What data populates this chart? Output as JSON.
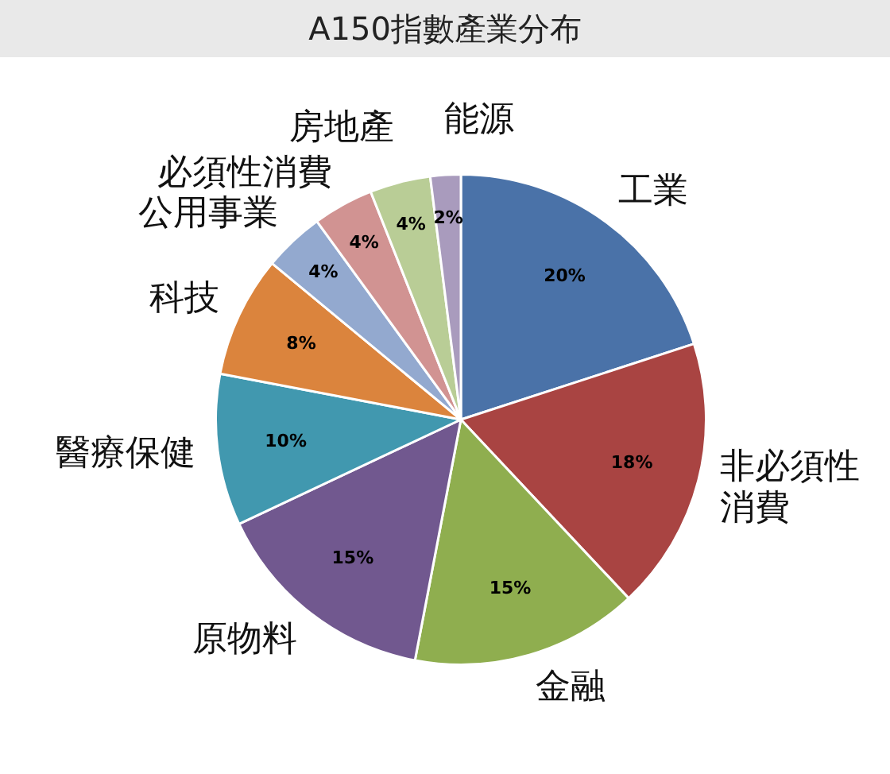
{
  "chart_data": {
    "type": "pie",
    "title": "A150指數產業分布",
    "categories": [
      "工業",
      "非必須性消費",
      "金融",
      "原物料",
      "醫療保健",
      "科技",
      "公用事業",
      "必須性消費",
      "房地產",
      "能源"
    ],
    "values": [
      20,
      18,
      15,
      15,
      10,
      8,
      4,
      4,
      4,
      2
    ],
    "value_labels": [
      "20%",
      "18%",
      "15%",
      "15%",
      "10%",
      "8%",
      "4%",
      "4%",
      "4%",
      "2%"
    ],
    "colors": [
      "#4a72a8",
      "#a94442",
      "#8fae4f",
      "#71588f",
      "#4198af",
      "#db843d",
      "#93a9cf",
      "#d19392",
      "#b9cd96",
      "#a99bbd"
    ],
    "legend": false
  }
}
